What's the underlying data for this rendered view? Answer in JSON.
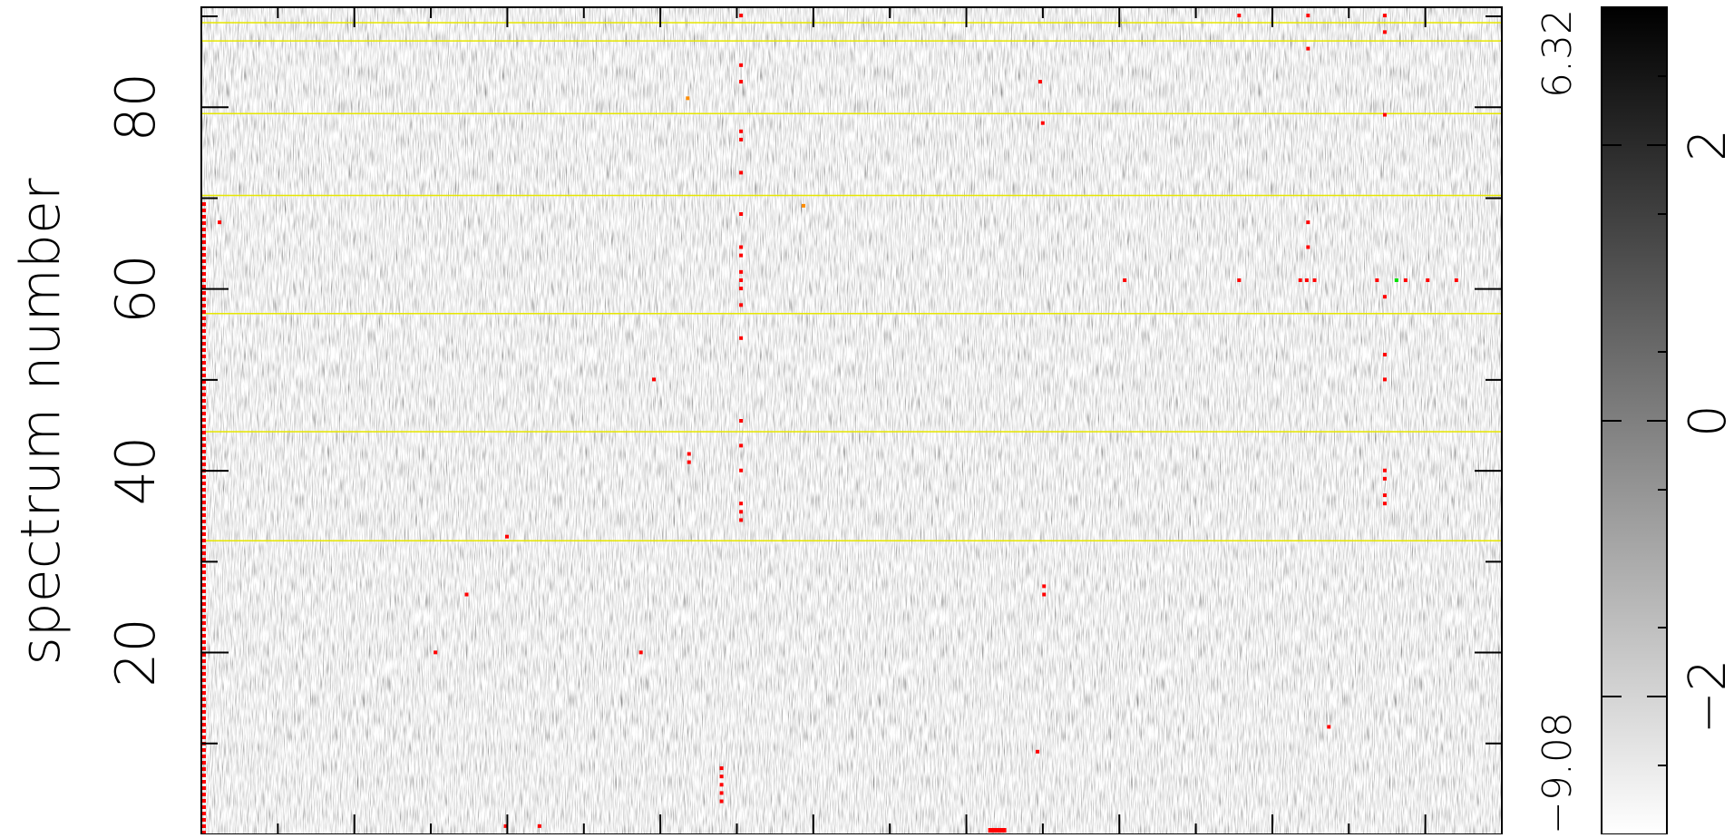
{
  "chart_data": [
    {
      "type": "heatmap",
      "ylabel": "spectrum number",
      "xlabel": "",
      "ylim": [
        0,
        91
      ],
      "y_ticks": [
        20,
        40,
        60,
        80
      ],
      "colormap": "grayscale, high = black",
      "data_range": {
        "min": -9.08,
        "max": 6.32
      },
      "data_range_labels": {
        "max": "6.32",
        "min": "−9.08"
      },
      "grid": false,
      "flag_lines": {
        "color": "#e6e600",
        "spectrum": [
          32.3,
          44.3,
          57.3,
          70.3,
          79.3,
          87.3,
          89.3
        ]
      },
      "flagged_points": {
        "color": "#ff0000",
        "spectrum_column_x_frac": [
          0.002
        ],
        "points_frac_y": [
          [
            0.415,
            0.99
          ],
          [
            0.415,
            0.93
          ],
          [
            0.415,
            0.91
          ],
          [
            0.415,
            0.85
          ],
          [
            0.415,
            0.84
          ],
          [
            0.415,
            0.8
          ],
          [
            0.415,
            0.75
          ],
          [
            0.415,
            0.71
          ],
          [
            0.415,
            0.7
          ],
          [
            0.415,
            0.68
          ],
          [
            0.415,
            0.67
          ],
          [
            0.415,
            0.66
          ],
          [
            0.415,
            0.64
          ],
          [
            0.415,
            0.6
          ],
          [
            0.415,
            0.5
          ],
          [
            0.415,
            0.47
          ],
          [
            0.415,
            0.44
          ],
          [
            0.415,
            0.4
          ],
          [
            0.415,
            0.39
          ],
          [
            0.415,
            0.38
          ],
          [
            0.375,
            0.45
          ],
          [
            0.375,
            0.46
          ],
          [
            0.348,
            0.55
          ],
          [
            0.235,
            0.36
          ],
          [
            0.204,
            0.29
          ],
          [
            0.18,
            0.22
          ],
          [
            0.338,
            0.22
          ],
          [
            0.4,
            0.08
          ],
          [
            0.4,
            0.07
          ],
          [
            0.4,
            0.06
          ],
          [
            0.4,
            0.05
          ],
          [
            0.4,
            0.04
          ],
          [
            0.234,
            0.01
          ],
          [
            0.26,
            0.01
          ],
          [
            0.014,
            0.74
          ],
          [
            0.643,
            0.1
          ],
          [
            0.645,
            0.91
          ],
          [
            0.647,
            0.86
          ],
          [
            0.648,
            0.3
          ],
          [
            0.648,
            0.29
          ],
          [
            0.71,
            0.67
          ],
          [
            0.798,
            0.67
          ],
          [
            0.798,
            0.99
          ],
          [
            0.845,
            0.67
          ],
          [
            0.85,
            0.67
          ],
          [
            0.856,
            0.67
          ],
          [
            0.851,
            0.74
          ],
          [
            0.851,
            0.71
          ],
          [
            0.851,
            0.99
          ],
          [
            0.851,
            0.95
          ],
          [
            0.867,
            0.13
          ],
          [
            0.904,
            0.67
          ],
          [
            0.91,
            0.65
          ],
          [
            0.91,
            0.58
          ],
          [
            0.91,
            0.55
          ],
          [
            0.91,
            0.87
          ],
          [
            0.91,
            0.99
          ],
          [
            0.91,
            0.97
          ],
          [
            0.91,
            0.44
          ],
          [
            0.91,
            0.43
          ],
          [
            0.91,
            0.41
          ],
          [
            0.91,
            0.4
          ],
          [
            0.926,
            0.67
          ],
          [
            0.943,
            0.67
          ],
          [
            0.965,
            0.67
          ]
        ],
        "orange_points_frac_y": [
          [
            0.374,
            0.89
          ],
          [
            0.463,
            0.76
          ]
        ],
        "green_points_frac_y": [
          [
            0.919,
            0.67
          ]
        ]
      }
    },
    {
      "type": "colorbar",
      "ylim": [
        -3,
        3
      ],
      "ticks": [
        -2,
        0,
        2
      ]
    }
  ]
}
